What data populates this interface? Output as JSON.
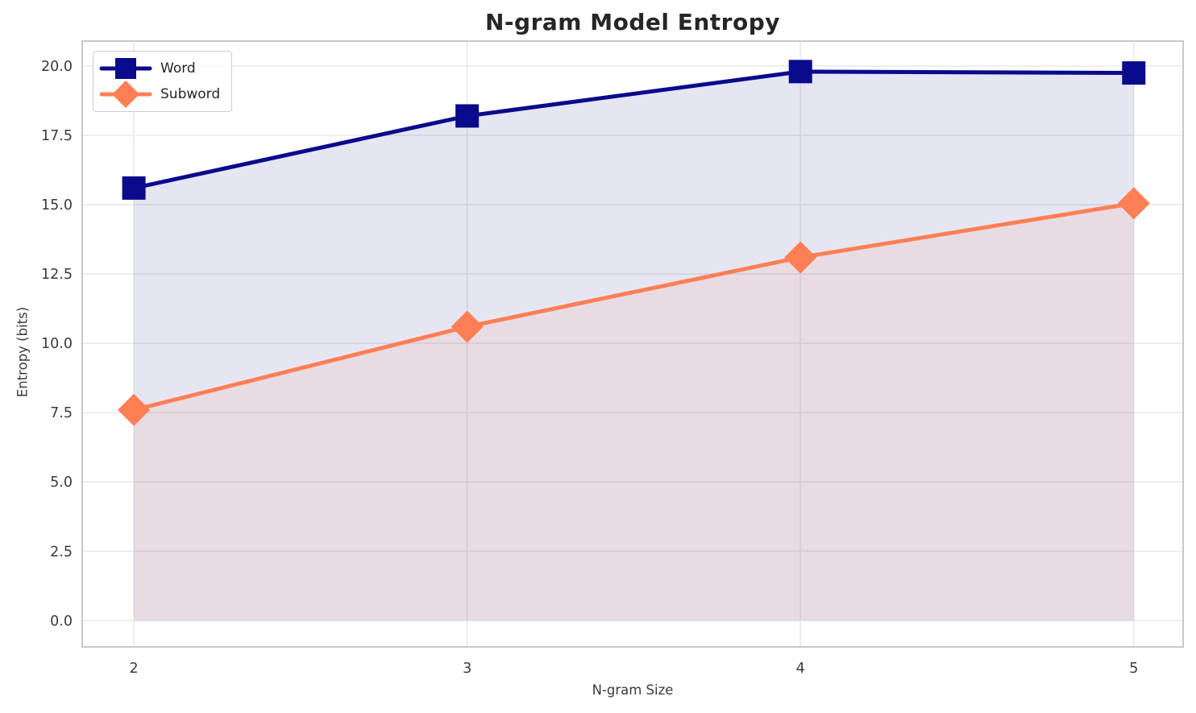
{
  "chart_data": {
    "type": "line",
    "title": "N-gram Model Entropy",
    "xlabel": "N-gram Size",
    "ylabel": "Entropy (bits)",
    "x": [
      2,
      3,
      4,
      5
    ],
    "x_tick_labels": [
      "2",
      "3",
      "4",
      "5"
    ],
    "y_tick_values": [
      0,
      2.5,
      5,
      7.5,
      10,
      12.5,
      15,
      17.5,
      20
    ],
    "y_tick_labels": [
      "0.0",
      "2.5",
      "5.0",
      "7.5",
      "10.0",
      "12.5",
      "15.0",
      "17.5",
      "20.0"
    ],
    "xlim": [
      1.845,
      5.148
    ],
    "ylim": [
      -0.95,
      20.9
    ],
    "grid": true,
    "legend_position": "upper-left",
    "series": [
      {
        "name": "Word",
        "values": [
          15.6,
          18.2,
          19.8,
          19.75
        ],
        "color": "#0a0a8c",
        "marker": "square",
        "fill_to_zero": true,
        "fill_opacity": 0.1
      },
      {
        "name": "Subword",
        "values": [
          7.6,
          10.6,
          13.1,
          15.05
        ],
        "color": "#ff7f55",
        "marker": "diamond",
        "fill_to_zero": true,
        "fill_opacity": 0.1
      }
    ],
    "colors": {
      "grid": "#ebebeb",
      "spine": "#c9c9c9",
      "background": "#ffffff",
      "tick_text": "#3a3a3a",
      "title_text": "#262626"
    }
  }
}
